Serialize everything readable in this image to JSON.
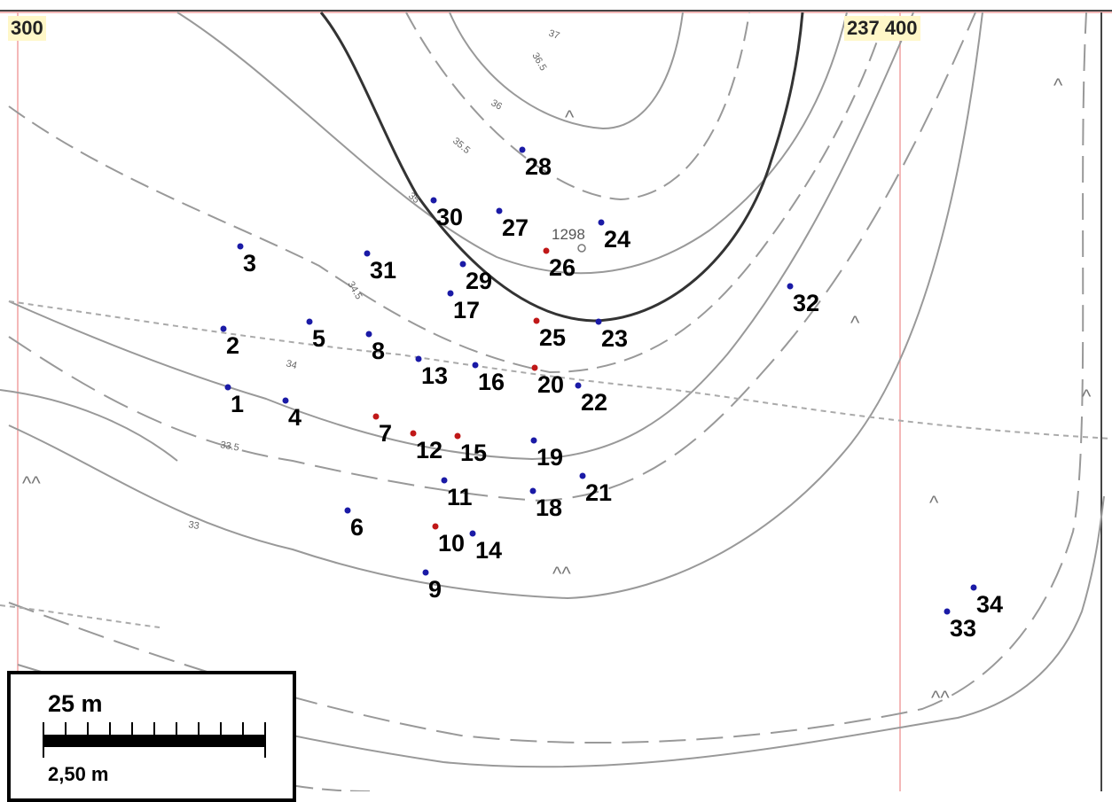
{
  "map": {
    "top_left_coord": "300",
    "top_right_coord": "237 400",
    "benchmark_label": "1298",
    "contour_labels": [
      "37",
      "36.5",
      "36",
      "35.5",
      "35",
      "34.5",
      "34",
      "33.5",
      "33"
    ],
    "terrain_symbol_single": "^",
    "terrain_symbol_double": "^^",
    "points": [
      {
        "id": "1",
        "color": "blue"
      },
      {
        "id": "2",
        "color": "blue"
      },
      {
        "id": "3",
        "color": "blue"
      },
      {
        "id": "4",
        "color": "blue"
      },
      {
        "id": "5",
        "color": "blue"
      },
      {
        "id": "6",
        "color": "blue"
      },
      {
        "id": "7",
        "color": "red"
      },
      {
        "id": "8",
        "color": "blue"
      },
      {
        "id": "9",
        "color": "blue"
      },
      {
        "id": "10",
        "color": "red"
      },
      {
        "id": "11",
        "color": "blue"
      },
      {
        "id": "12",
        "color": "red"
      },
      {
        "id": "13",
        "color": "blue"
      },
      {
        "id": "14",
        "color": "blue"
      },
      {
        "id": "15",
        "color": "red"
      },
      {
        "id": "16",
        "color": "blue"
      },
      {
        "id": "17",
        "color": "blue"
      },
      {
        "id": "18",
        "color": "blue"
      },
      {
        "id": "19",
        "color": "blue"
      },
      {
        "id": "20",
        "color": "red"
      },
      {
        "id": "21",
        "color": "blue"
      },
      {
        "id": "22",
        "color": "blue"
      },
      {
        "id": "23",
        "color": "blue"
      },
      {
        "id": "24",
        "color": "blue"
      },
      {
        "id": "25",
        "color": "red"
      },
      {
        "id": "26",
        "color": "red"
      },
      {
        "id": "27",
        "color": "blue"
      },
      {
        "id": "28",
        "color": "blue"
      },
      {
        "id": "29",
        "color": "blue"
      },
      {
        "id": "30",
        "color": "blue"
      },
      {
        "id": "31",
        "color": "blue"
      },
      {
        "id": "32",
        "color": "blue"
      },
      {
        "id": "33",
        "color": "blue"
      },
      {
        "id": "34",
        "color": "blue"
      }
    ]
  },
  "scale_bar": {
    "major_label": "25 m",
    "minor_label": "2,50 m"
  },
  "colors": {
    "point_blue": "#1a1aa6",
    "point_red": "#c01818",
    "contour": "#999999",
    "contour_index": "#333333",
    "grid_line": "#f0a0a0",
    "label_bg": "#fff7c8"
  }
}
